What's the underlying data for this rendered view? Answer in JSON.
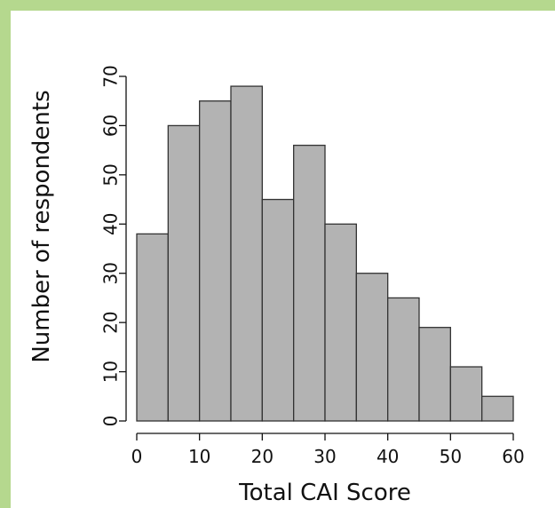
{
  "chart_data": {
    "type": "bar",
    "title": "",
    "xlabel": "Total CAI Score",
    "ylabel": "Number of respondents",
    "bins": [
      [
        0,
        5
      ],
      [
        5,
        10
      ],
      [
        10,
        15
      ],
      [
        15,
        20
      ],
      [
        20,
        25
      ],
      [
        25,
        30
      ],
      [
        30,
        35
      ],
      [
        35,
        40
      ],
      [
        40,
        45
      ],
      [
        45,
        50
      ],
      [
        50,
        55
      ],
      [
        55,
        60
      ]
    ],
    "values": [
      38,
      60,
      65,
      68,
      45,
      56,
      40,
      30,
      25,
      19,
      11,
      5
    ],
    "xlim": [
      0,
      60
    ],
    "ylim": [
      0,
      70
    ],
    "xticks": [
      0,
      10,
      20,
      30,
      40,
      50,
      60
    ],
    "yticks": [
      0,
      10,
      20,
      30,
      40,
      50,
      60,
      70
    ],
    "grid": false,
    "bar_color": "#b3b3b3",
    "frame_color": "#b5d88e"
  }
}
